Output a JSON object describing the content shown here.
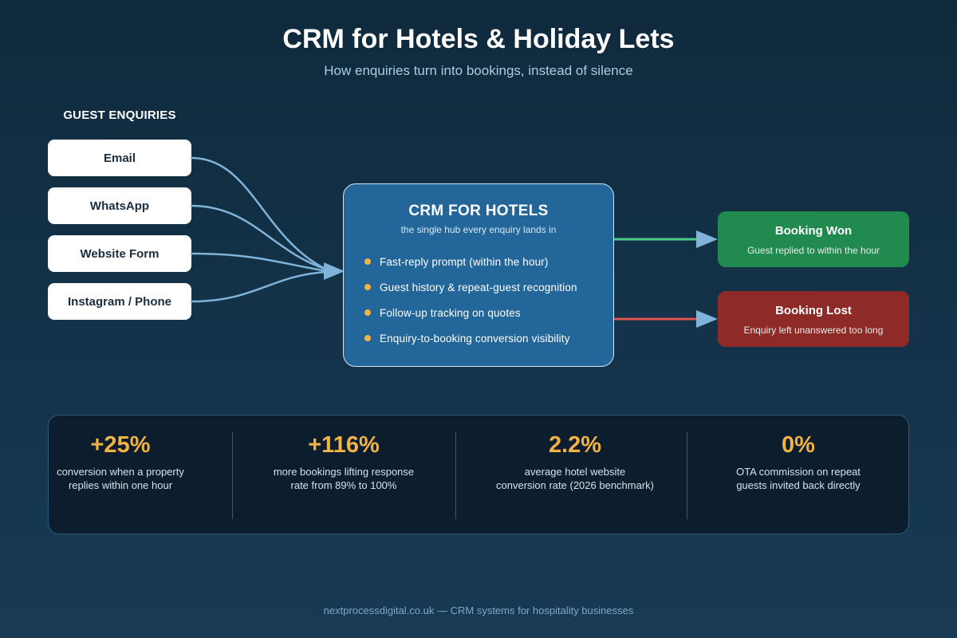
{
  "header": {
    "title": "CRM for Hotels & Holiday Lets",
    "subtitle": "How enquiries turn into bookings, instead of silence"
  },
  "sources": {
    "label": "GUEST ENQUIRIES",
    "items": [
      "Email",
      "WhatsApp",
      "Website Form",
      "Instagram / Phone"
    ]
  },
  "hub": {
    "title": "CRM FOR HOTELS",
    "subtitle": "the single hub every enquiry lands in",
    "features": [
      "Fast-reply prompt (within the hour)",
      "Guest history & repeat-guest recognition",
      "Follow-up tracking on quotes",
      "Enquiry-to-booking conversion visibility"
    ]
  },
  "outcomes": {
    "won": {
      "title": "Booking Won",
      "subtitle": "Guest replied to within the hour"
    },
    "lost": {
      "title": "Booking Lost",
      "subtitle": "Enquiry left unanswered too long"
    }
  },
  "stats": [
    {
      "value": "+25%",
      "line1": "conversion when a property",
      "line2": "replies within one hour"
    },
    {
      "value": "+116%",
      "line1": "more bookings lifting response",
      "line2": "rate from 89% to 100%"
    },
    {
      "value": "2.2%",
      "line1": "average hotel website",
      "line2": "conversion rate (2026 benchmark)"
    },
    {
      "value": "0%",
      "line1": "OTA commission on repeat",
      "line2": "guests invited back directly"
    }
  ],
  "footer": "nextprocessdigital.co.uk — CRM systems for hospitality businesses",
  "colors": {
    "accent": "#f2b244",
    "connector": "#7fb3d9",
    "won": "#218a4e",
    "won_line": "#4fc98a",
    "lost": "#8e2a27",
    "lost_line": "#d9534f",
    "hub": "#23669a"
  }
}
